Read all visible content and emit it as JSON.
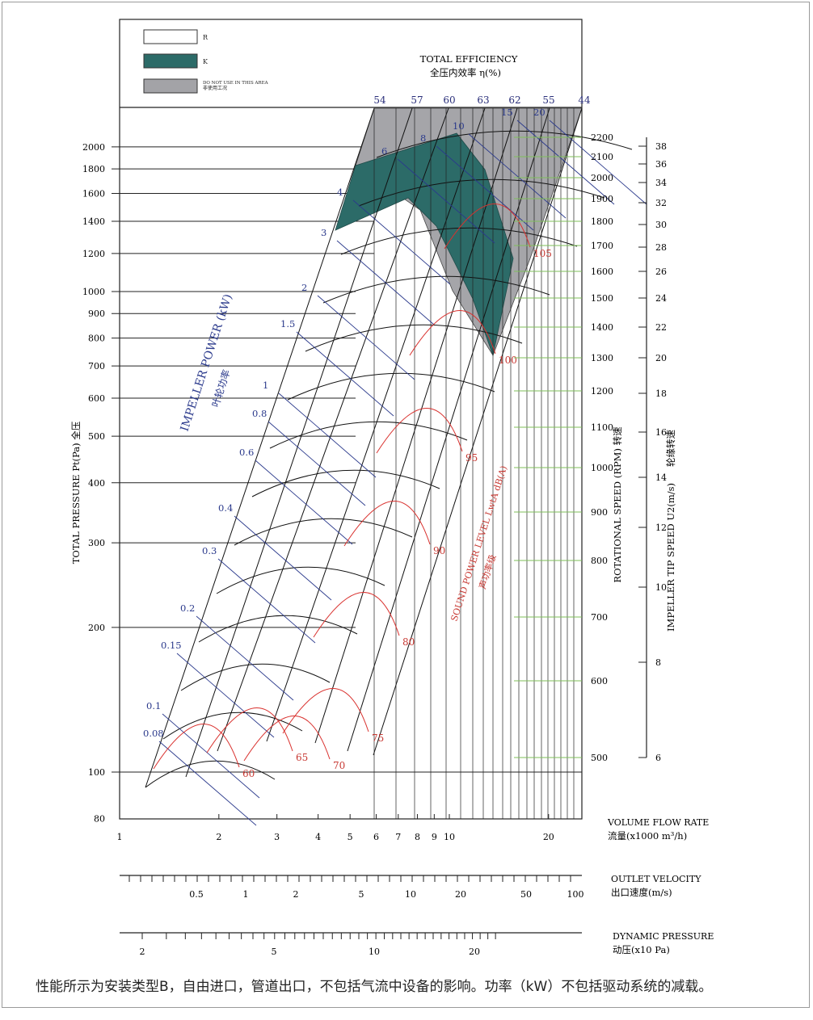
{
  "chart_data": {
    "type": "line",
    "legend": [
      {
        "label": "R",
        "color": "#ffffff"
      },
      {
        "label": "K",
        "color": "#2c6b68"
      },
      {
        "label": "DO NOT USE IN THIS AREA",
        "sublabel": "非使用工况",
        "color": "#a3a3a7"
      }
    ],
    "efficiency_title": "TOTAL EFFICIENCY",
    "efficiency_title_cn": "全压内效率 η(%)",
    "efficiency_labels": [
      "54",
      "57",
      "60",
      "63",
      "62",
      "55",
      "44"
    ],
    "y_axis": {
      "label": "TOTAL PRESSURE Pt(Pa)  全压",
      "scale": "log",
      "range": [
        80,
        2300
      ],
      "ticks": [
        80,
        100,
        200,
        300,
        400,
        500,
        600,
        700,
        800,
        900,
        1000,
        1200,
        1400,
        1600,
        1800,
        2000
      ]
    },
    "x_axis": {
      "label": "VOLUME FLOW RATE",
      "label_cn": "流量(x1000 m³/h)",
      "scale": "log",
      "range": [
        1,
        30
      ],
      "ticks": [
        1,
        2,
        3,
        4,
        5,
        6,
        7,
        8,
        9,
        10,
        20
      ]
    },
    "outlet_velocity": {
      "label": "OUTLET VELOCITY",
      "label_cn": "出口速度(m/s)",
      "ticks": [
        "0.5",
        "1",
        "2",
        "5",
        "10",
        "20",
        "50",
        "100"
      ]
    },
    "dynamic_pressure": {
      "label": "DYNAMIC PRESSURE",
      "label_cn": "动压(x10 Pa)",
      "ticks": [
        "2",
        "5",
        "10",
        "20"
      ]
    },
    "rotational_speed": {
      "label": "ROTATIONAL SPEED (RPM) 转速",
      "ticks": [
        500,
        600,
        700,
        800,
        900,
        1000,
        1100,
        1200,
        1300,
        1400,
        1500,
        1600,
        1700,
        1800,
        1900,
        2000,
        2100,
        2200
      ]
    },
    "tip_speed": {
      "label": "IMPELLER TIP SPEED U2(m/s)",
      "label_cn": "轮缘转速",
      "ticks": [
        6,
        8,
        10,
        12,
        14,
        16,
        18,
        20,
        22,
        24,
        26,
        28,
        30,
        32,
        34,
        36,
        38
      ]
    },
    "impeller_power": {
      "label": "IMPELLER POWER (kW)",
      "label_cn": "叶轮功率",
      "values": [
        "0.08",
        "0.1",
        "0.15",
        "0.2",
        "0.3",
        "0.4",
        "0.6",
        "0.8",
        "1",
        "1.5",
        "2",
        "3",
        "4",
        "6",
        "8",
        "10",
        "15",
        "20"
      ]
    },
    "sound_power": {
      "label": "SOUND POWER LEVEL LwtA dB(A)",
      "label_cn": "声功率级",
      "values": [
        "60",
        "65",
        "70",
        "75",
        "80",
        "90",
        "95",
        "100",
        "105"
      ]
    }
  },
  "footnote": "性能所示为安装类型B，自由进口，管道出口，不包括气流中设备的影响。功率（kW）不包括驱动系统的减载。"
}
